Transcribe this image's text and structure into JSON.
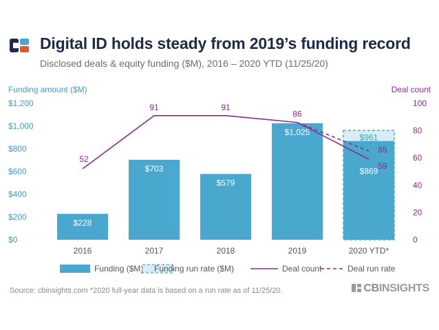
{
  "header": {
    "title": "Digital ID holds steady from 2019’s funding record",
    "subtitle": "Disclosed deals & equity funding ($M), 2016 – 2020 YTD (11/25/20)"
  },
  "footer": {
    "source": "Source: cbinsights.com  *2020 full-year data is based on a run rate as of 11/25/20.",
    "brand_prefix": "CB",
    "brand_suffix": "INSIGHTS"
  },
  "colors": {
    "funding": "#4aa8cf",
    "run_rate_fill": "#d7eef7",
    "run_rate_stroke": "#4aa8cf",
    "deal": "#8e2a8e",
    "title": "#1f2a44"
  },
  "chart_data": {
    "type": "bar",
    "categories": [
      "2016",
      "2017",
      "2018",
      "2019",
      "2020 YTD*"
    ],
    "series": [
      {
        "name": "Funding ($M)",
        "kind": "bar",
        "axis": "left",
        "values": [
          228,
          703,
          579,
          1025,
          869
        ],
        "labels": [
          "$228",
          "$703",
          "$579",
          "$1,025",
          "$869"
        ]
      },
      {
        "name": "Funding run rate ($M)",
        "kind": "bar-dashed",
        "axis": "left",
        "values": [
          null,
          null,
          null,
          null,
          961
        ],
        "labels": [
          "",
          "",
          "",
          "",
          "$961"
        ]
      },
      {
        "name": "Deal count",
        "kind": "line",
        "axis": "right",
        "values": [
          52,
          91,
          91,
          86,
          59
        ],
        "labels": [
          "52",
          "91",
          "91",
          "86",
          "59"
        ]
      },
      {
        "name": "Deal run rate",
        "kind": "line-dashed",
        "axis": "right",
        "values": [
          null,
          null,
          null,
          86,
          65
        ],
        "labels": [
          "",
          "",
          "",
          "",
          "65"
        ]
      }
    ],
    "y_left": {
      "title": "Funding amount ($M)",
      "lim": [
        0,
        1200
      ],
      "ticks": [
        0,
        200,
        400,
        600,
        800,
        1000,
        1200
      ],
      "tick_labels": [
        "$0",
        "$200",
        "$400",
        "$600",
        "$800",
        "$1,000",
        "$1,200"
      ]
    },
    "y_right": {
      "title": "Deal count",
      "lim": [
        0,
        100
      ],
      "ticks": [
        0,
        20,
        40,
        60,
        80,
        100
      ],
      "tick_labels": [
        "0",
        "20",
        "40",
        "60",
        "80",
        "100"
      ]
    },
    "grid": false,
    "legend": {
      "position": "bottom",
      "entries": [
        "Funding ($M)",
        "Funding run rate ($M)",
        "Deal count",
        "Deal run rate"
      ]
    }
  }
}
